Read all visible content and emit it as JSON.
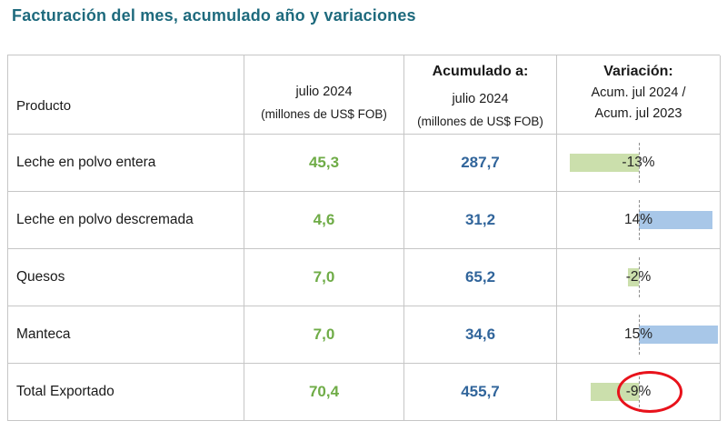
{
  "title": "Facturación del mes, acumulado año y variaciones",
  "table": {
    "header": {
      "producto": "Producto",
      "mes_line1": "julio 2024",
      "mes_line2": "(millones de US$ FOB)",
      "acumulado_title": "Acumulado a:",
      "acumulado_line1": "julio 2024",
      "acumulado_line2": "(millones de US$ FOB)",
      "variacion_title": "Variación:",
      "variacion_line1": "Acum. jul 2024 /",
      "variacion_line2": "Acum. jul 2023"
    },
    "bar_scale_max": 15,
    "rows": [
      {
        "producto": "Leche en polvo entera",
        "mes": "45,3",
        "acumulado": "287,7",
        "variacion": "-13%",
        "variacion_value": -13,
        "circled": false
      },
      {
        "producto": "Leche en polvo descremada",
        "mes": "4,6",
        "acumulado": "31,2",
        "variacion": "14%",
        "variacion_value": 14,
        "circled": false
      },
      {
        "producto": "Quesos",
        "mes": "7,0",
        "acumulado": "65,2",
        "variacion": "-2%",
        "variacion_value": -2,
        "circled": false
      },
      {
        "producto": "Manteca",
        "mes": "7,0",
        "acumulado": "34,6",
        "variacion": "15%",
        "variacion_value": 15,
        "circled": false
      },
      {
        "producto": "Total Exportado",
        "mes": "70,4",
        "acumulado": "455,7",
        "variacion": "-9%",
        "variacion_value": -9,
        "circled": true
      }
    ]
  },
  "colors": {
    "title": "#1E6A7D",
    "text": "#1A1A1A",
    "mes_value": "#6FAC47",
    "acumulado_value": "#31659B",
    "bar_negative": "#CBDFAC",
    "bar_positive": "#A8C7E8",
    "circle": "#E8121B",
    "border": "#C6C6C6"
  },
  "chart_data": {
    "type": "table",
    "title": "Facturación del mes, acumulado año y variaciones",
    "columns": [
      "Producto",
      "julio 2024 (millones de US$ FOB)",
      "Acumulado a: julio 2024 (millones de US$ FOB)",
      "Variación: Acum. jul 2024 / Acum. jul 2023"
    ],
    "rows": [
      {
        "producto": "Leche en polvo entera",
        "julio_2024": 45.3,
        "acumulado_julio_2024": 287.7,
        "variacion_pct": -13
      },
      {
        "producto": "Leche en polvo descremada",
        "julio_2024": 4.6,
        "acumulado_julio_2024": 31.2,
        "variacion_pct": 14
      },
      {
        "producto": "Quesos",
        "julio_2024": 7.0,
        "acumulado_julio_2024": 65.2,
        "variacion_pct": -2
      },
      {
        "producto": "Manteca",
        "julio_2024": 7.0,
        "acumulado_julio_2024": 34.6,
        "variacion_pct": 15
      },
      {
        "producto": "Total Exportado",
        "julio_2024": 70.4,
        "acumulado_julio_2024": 455.7,
        "variacion_pct": -9
      }
    ],
    "layout": {
      "variation_bars": "data bars centered on a dashed zero axis; negative = light green bar extending left, positive = light blue bar extending right",
      "bar_axis_position": "center of cell",
      "bar_value_range": [
        -15,
        15
      ],
      "annotation": "red ellipse drawn around the -9% value of Total Exportado"
    }
  }
}
